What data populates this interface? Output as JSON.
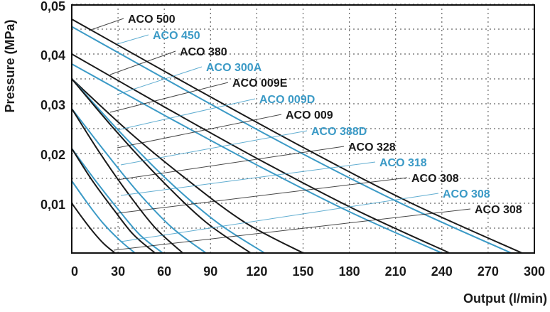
{
  "chart_data": {
    "type": "line",
    "title": "",
    "xlabel": "Output (l/min)",
    "ylabel": "Pressure (MPa)",
    "xlim": [
      0,
      300
    ],
    "ylim": [
      0,
      0.05
    ],
    "x_ticks": [
      0,
      30,
      60,
      90,
      120,
      150,
      180,
      210,
      240,
      270,
      300
    ],
    "x_tick_labels": [
      "0",
      "30",
      "60",
      "90",
      "120",
      "150",
      "180",
      "210",
      "240",
      "270",
      "300"
    ],
    "y_ticks": [
      0.01,
      0.02,
      0.03,
      0.04,
      0.05
    ],
    "y_tick_labels": [
      "0,01",
      "0,02",
      "0,03",
      "0,04",
      "0,05"
    ],
    "grid": "dotted, x every 30, y every 0.005",
    "colors": {
      "black": "#1a1a1a",
      "blue": "#3b9ac6"
    },
    "series": [
      {
        "name": "ACO 500",
        "color": "black",
        "x": [
          0,
          73,
          146,
          219,
          292
        ],
        "y": [
          0.047,
          0.0343,
          0.0219,
          0.0102,
          0
        ]
      },
      {
        "name": "ACO 450",
        "color": "blue",
        "x": [
          0,
          71,
          142,
          214,
          285
        ],
        "y": [
          0.0455,
          0.0332,
          0.0212,
          0.0099,
          0
        ]
      },
      {
        "name": "ACO 380",
        "color": "black",
        "x": [
          0,
          61,
          122,
          184,
          245
        ],
        "y": [
          0.04,
          0.0292,
          0.0187,
          0.0087,
          0
        ]
      },
      {
        "name": "ACO 300A",
        "color": "blue",
        "x": [
          0,
          60,
          120,
          180,
          240
        ],
        "y": [
          0.038,
          0.0277,
          0.0177,
          0.0083,
          0
        ]
      },
      {
        "name": "ACO 009E",
        "color": "black",
        "x": [
          0,
          37,
          75,
          112,
          150
        ],
        "y": [
          0.035,
          0.0244,
          0.0147,
          0.0062,
          0
        ]
      },
      {
        "name": "ACO 009D",
        "color": "blue",
        "x": [
          0,
          31,
          62,
          94,
          125
        ],
        "y": [
          0.035,
          0.0244,
          0.0147,
          0.0062,
          0
        ]
      },
      {
        "name": "ACO 009",
        "color": "black",
        "x": [
          0,
          29,
          58,
          87,
          116
        ],
        "y": [
          0.035,
          0.0244,
          0.0147,
          0.0062,
          0
        ]
      },
      {
        "name": "ACO 388D",
        "color": "blue",
        "x": [
          0,
          22,
          43,
          65,
          87
        ],
        "y": [
          0.029,
          0.0202,
          0.0122,
          0.0051,
          0
        ]
      },
      {
        "name": "ACO 328",
        "color": "black",
        "x": [
          0,
          18,
          36,
          54,
          72
        ],
        "y": [
          0.029,
          0.0202,
          0.0122,
          0.0051,
          0
        ]
      },
      {
        "name": "ACO 318",
        "color": "blue",
        "x": [
          0,
          15,
          30,
          44,
          59
        ],
        "y": [
          0.021,
          0.0147,
          0.0088,
          0.0037,
          0
        ]
      },
      {
        "name": "ACO 308",
        "color": "black",
        "x": [
          0,
          13,
          27,
          40,
          54
        ],
        "y": [
          0.021,
          0.0147,
          0.0088,
          0.0037,
          0
        ]
      },
      {
        "name": "ACO 308",
        "color": "blue",
        "x": [
          0,
          10,
          20,
          31,
          41
        ],
        "y": [
          0.0145,
          0.0101,
          0.0061,
          0.0026,
          0
        ]
      },
      {
        "name": "ACO 308",
        "color": "black",
        "x": [
          0,
          7,
          14,
          21,
          28
        ],
        "y": [
          0.01,
          0.007,
          0.0042,
          0.0018,
          0
        ]
      }
    ]
  }
}
